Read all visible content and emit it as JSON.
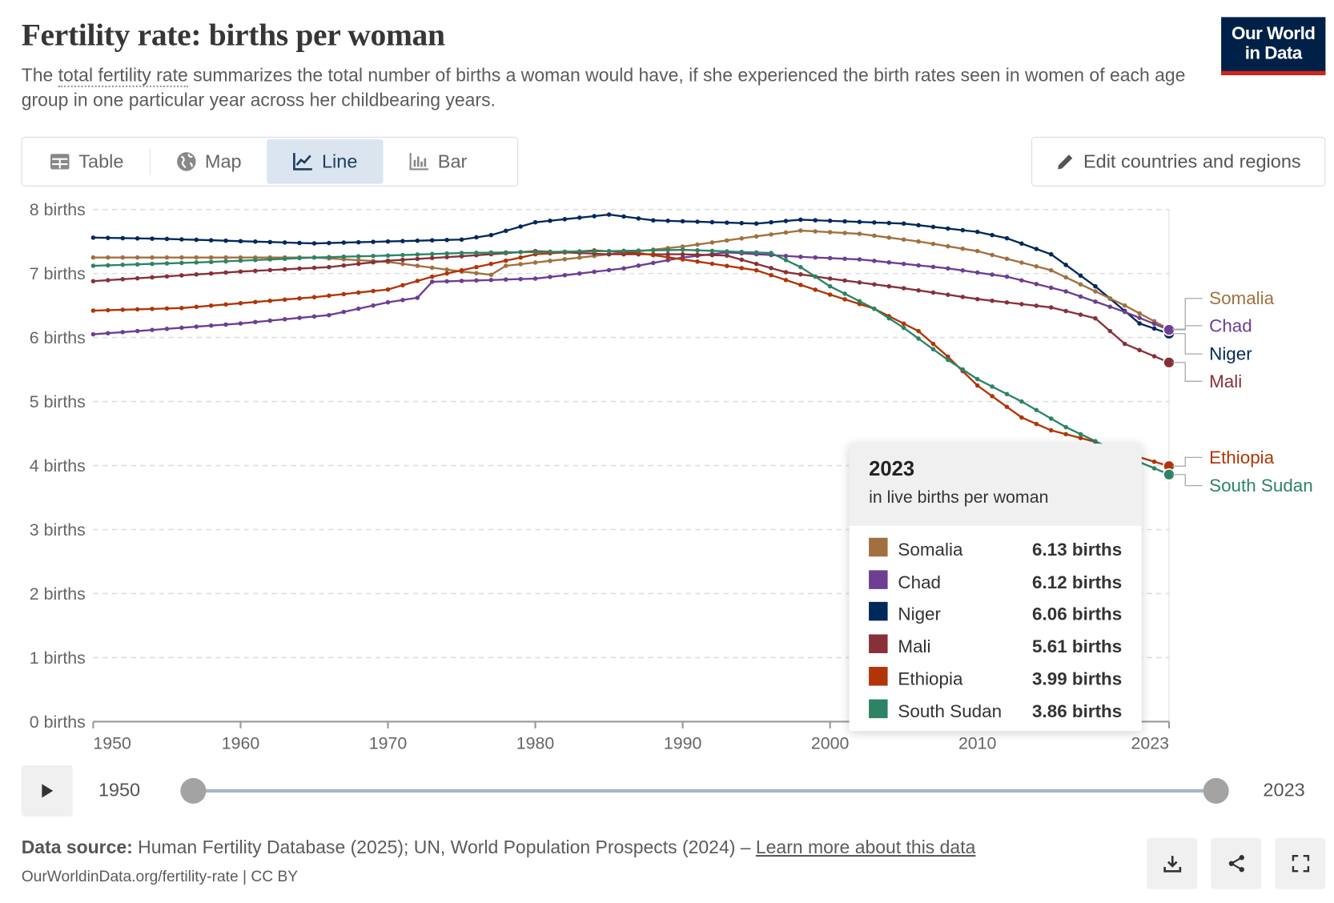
{
  "header": {
    "title": "Fertility rate: births per woman",
    "subtitle_before": "The ",
    "subtitle_link": "total fertility rate",
    "subtitle_after": " summarizes the total number of births a woman would have, if she experienced the birth rates seen in women of each age group in one particular year across her childbearing years.",
    "logo": "Our World in Data"
  },
  "tabs": [
    {
      "label": "Table",
      "icon": "table-icon"
    },
    {
      "label": "Map",
      "icon": "globe-icon"
    },
    {
      "label": "Line",
      "icon": "line-chart-icon",
      "active": true
    },
    {
      "label": "Bar",
      "icon": "bar-chart-icon"
    }
  ],
  "edit_button": "Edit countries and regions",
  "chart_data": {
    "type": "line",
    "ylabel": "births",
    "yticks": [
      "0 births",
      "1 births",
      "2 births",
      "3 births",
      "4 births",
      "5 births",
      "6 births",
      "7 births",
      "8 births"
    ],
    "ylim": [
      0,
      8
    ],
    "xlim": [
      1950,
      2023
    ],
    "xticks": [
      "1950",
      "1960",
      "1970",
      "1980",
      "1990",
      "2000",
      "2010",
      "2023"
    ],
    "grid": "horizontal-dashed",
    "legend": "right-end-labels",
    "series": [
      {
        "name": "Niger",
        "color": "#00295b",
        "points": [
          [
            1950,
            7.56
          ],
          [
            1955,
            7.54
          ],
          [
            1965,
            7.47
          ],
          [
            1975,
            7.53
          ],
          [
            1977,
            7.6
          ],
          [
            1980,
            7.8
          ],
          [
            1985,
            7.92
          ],
          [
            1988,
            7.83
          ],
          [
            1995,
            7.78
          ],
          [
            1998,
            7.84
          ],
          [
            2005,
            7.78
          ],
          [
            2010,
            7.65
          ],
          [
            2012,
            7.55
          ],
          [
            2015,
            7.3
          ],
          [
            2018,
            6.8
          ],
          [
            2021,
            6.22
          ],
          [
            2023,
            6.06
          ]
        ]
      },
      {
        "name": "Somalia",
        "color": "#a2703f",
        "points": [
          [
            1950,
            7.25
          ],
          [
            1965,
            7.25
          ],
          [
            1970,
            7.18
          ],
          [
            1975,
            7.03
          ],
          [
            1977,
            6.98
          ],
          [
            1978,
            7.12
          ],
          [
            1985,
            7.3
          ],
          [
            1990,
            7.42
          ],
          [
            1995,
            7.58
          ],
          [
            1998,
            7.67
          ],
          [
            2002,
            7.62
          ],
          [
            2006,
            7.5
          ],
          [
            2010,
            7.35
          ],
          [
            2015,
            7.05
          ],
          [
            2020,
            6.5
          ],
          [
            2023,
            6.13
          ]
        ]
      },
      {
        "name": "Chad",
        "color": "#6d3e91",
        "points": [
          [
            1950,
            6.05
          ],
          [
            1960,
            6.22
          ],
          [
            1966,
            6.35
          ],
          [
            1970,
            6.55
          ],
          [
            1972,
            6.62
          ],
          [
            1973,
            6.87
          ],
          [
            1980,
            6.92
          ],
          [
            1986,
            7.08
          ],
          [
            1990,
            7.25
          ],
          [
            1993,
            7.33
          ],
          [
            1998,
            7.26
          ],
          [
            2002,
            7.22
          ],
          [
            2008,
            7.08
          ],
          [
            2012,
            6.95
          ],
          [
            2016,
            6.72
          ],
          [
            2020,
            6.4
          ],
          [
            2023,
            6.12
          ]
        ]
      },
      {
        "name": "Mali",
        "color": "#883039",
        "points": [
          [
            1950,
            6.88
          ],
          [
            1960,
            7.03
          ],
          [
            1966,
            7.1
          ],
          [
            1970,
            7.2
          ],
          [
            1975,
            7.27
          ],
          [
            1980,
            7.35
          ],
          [
            1985,
            7.3
          ],
          [
            1990,
            7.3
          ],
          [
            1993,
            7.28
          ],
          [
            1997,
            7.02
          ],
          [
            2000,
            6.92
          ],
          [
            2005,
            6.77
          ],
          [
            2010,
            6.6
          ],
          [
            2015,
            6.47
          ],
          [
            2018,
            6.3
          ],
          [
            2019,
            6.1
          ],
          [
            2020,
            5.9
          ],
          [
            2023,
            5.61
          ]
        ]
      },
      {
        "name": "Ethiopia",
        "color": "#b13507",
        "points": [
          [
            1950,
            6.42
          ],
          [
            1956,
            6.46
          ],
          [
            1965,
            6.63
          ],
          [
            1970,
            6.75
          ],
          [
            1973,
            6.95
          ],
          [
            1976,
            7.1
          ],
          [
            1980,
            7.3
          ],
          [
            1984,
            7.36
          ],
          [
            1987,
            7.32
          ],
          [
            1990,
            7.22
          ],
          [
            1995,
            7.05
          ],
          [
            2000,
            6.67
          ],
          [
            2003,
            6.45
          ],
          [
            2006,
            6.1
          ],
          [
            2008,
            5.7
          ],
          [
            2010,
            5.25
          ],
          [
            2013,
            4.75
          ],
          [
            2015,
            4.55
          ],
          [
            2018,
            4.37
          ],
          [
            2020,
            4.2
          ],
          [
            2023,
            3.99
          ]
        ]
      },
      {
        "name": "South Sudan",
        "color": "#2c8465",
        "points": [
          [
            1950,
            7.12
          ],
          [
            1958,
            7.18
          ],
          [
            1965,
            7.25
          ],
          [
            1970,
            7.28
          ],
          [
            1975,
            7.32
          ],
          [
            1985,
            7.35
          ],
          [
            1990,
            7.37
          ],
          [
            1996,
            7.32
          ],
          [
            1998,
            7.1
          ],
          [
            2000,
            6.8
          ],
          [
            2003,
            6.45
          ],
          [
            2005,
            6.15
          ],
          [
            2008,
            5.65
          ],
          [
            2010,
            5.35
          ],
          [
            2013,
            5.0
          ],
          [
            2016,
            4.6
          ],
          [
            2018,
            4.38
          ],
          [
            2020,
            4.15
          ],
          [
            2023,
            3.86
          ]
        ]
      }
    ],
    "end_labels": [
      "Somalia",
      "Chad",
      "Niger",
      "Mali",
      "Ethiopia",
      "South Sudan"
    ]
  },
  "tooltip": {
    "year": "2023",
    "unit": "in live births per woman",
    "rows": [
      {
        "name": "Somalia",
        "value": "6.13 births",
        "color": "#a2703f"
      },
      {
        "name": "Chad",
        "value": "6.12 births",
        "color": "#6d3e91"
      },
      {
        "name": "Niger",
        "value": "6.06 births",
        "color": "#00295b"
      },
      {
        "name": "Mali",
        "value": "5.61 births",
        "color": "#883039"
      },
      {
        "name": "Ethiopia",
        "value": "3.99 births",
        "color": "#b13507"
      },
      {
        "name": "South Sudan",
        "value": "3.86 births",
        "color": "#2c8465"
      }
    ]
  },
  "timeline": {
    "start": "1950",
    "end": "2023",
    "start_fraction": 0,
    "end_fraction": 1
  },
  "footer": {
    "source_label": "Data source:",
    "source_text": " Human Fertility Database (2025); UN, World Population Prospects (2024) – ",
    "source_link": "Learn more about this data",
    "url": "OurWorldinData.org/fertility-rate | CC BY"
  }
}
